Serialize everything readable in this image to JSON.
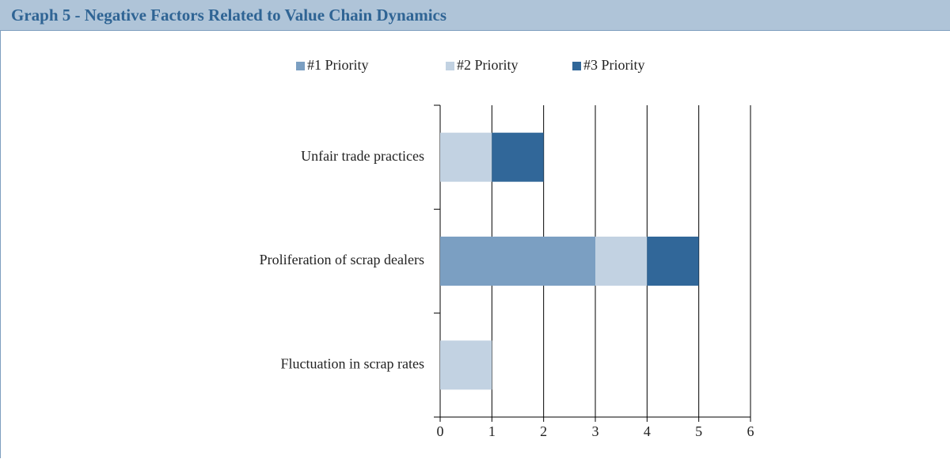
{
  "chart_data": {
    "type": "stacked-bar-horizontal",
    "title": "Graph 5 - Negative Factors Related to Value Chain Dynamics",
    "categories": [
      "Unfair trade practices",
      "Proliferation of scrap dealers",
      "Fluctuation in scrap rates"
    ],
    "series": [
      {
        "name": "#1 Priority",
        "color": "#7b9fc2",
        "values": [
          0,
          3,
          0
        ]
      },
      {
        "name": "#2 Priority",
        "color": "#c2d2e2",
        "values": [
          1,
          1,
          1
        ]
      },
      {
        "name": "#3 Priority",
        "color": "#316799",
        "values": [
          1,
          1,
          0
        ]
      }
    ],
    "xlim": [
      0,
      6
    ],
    "xticks": [
      0,
      1,
      2,
      3,
      4,
      5,
      6
    ],
    "grid": true,
    "legend": "top"
  }
}
